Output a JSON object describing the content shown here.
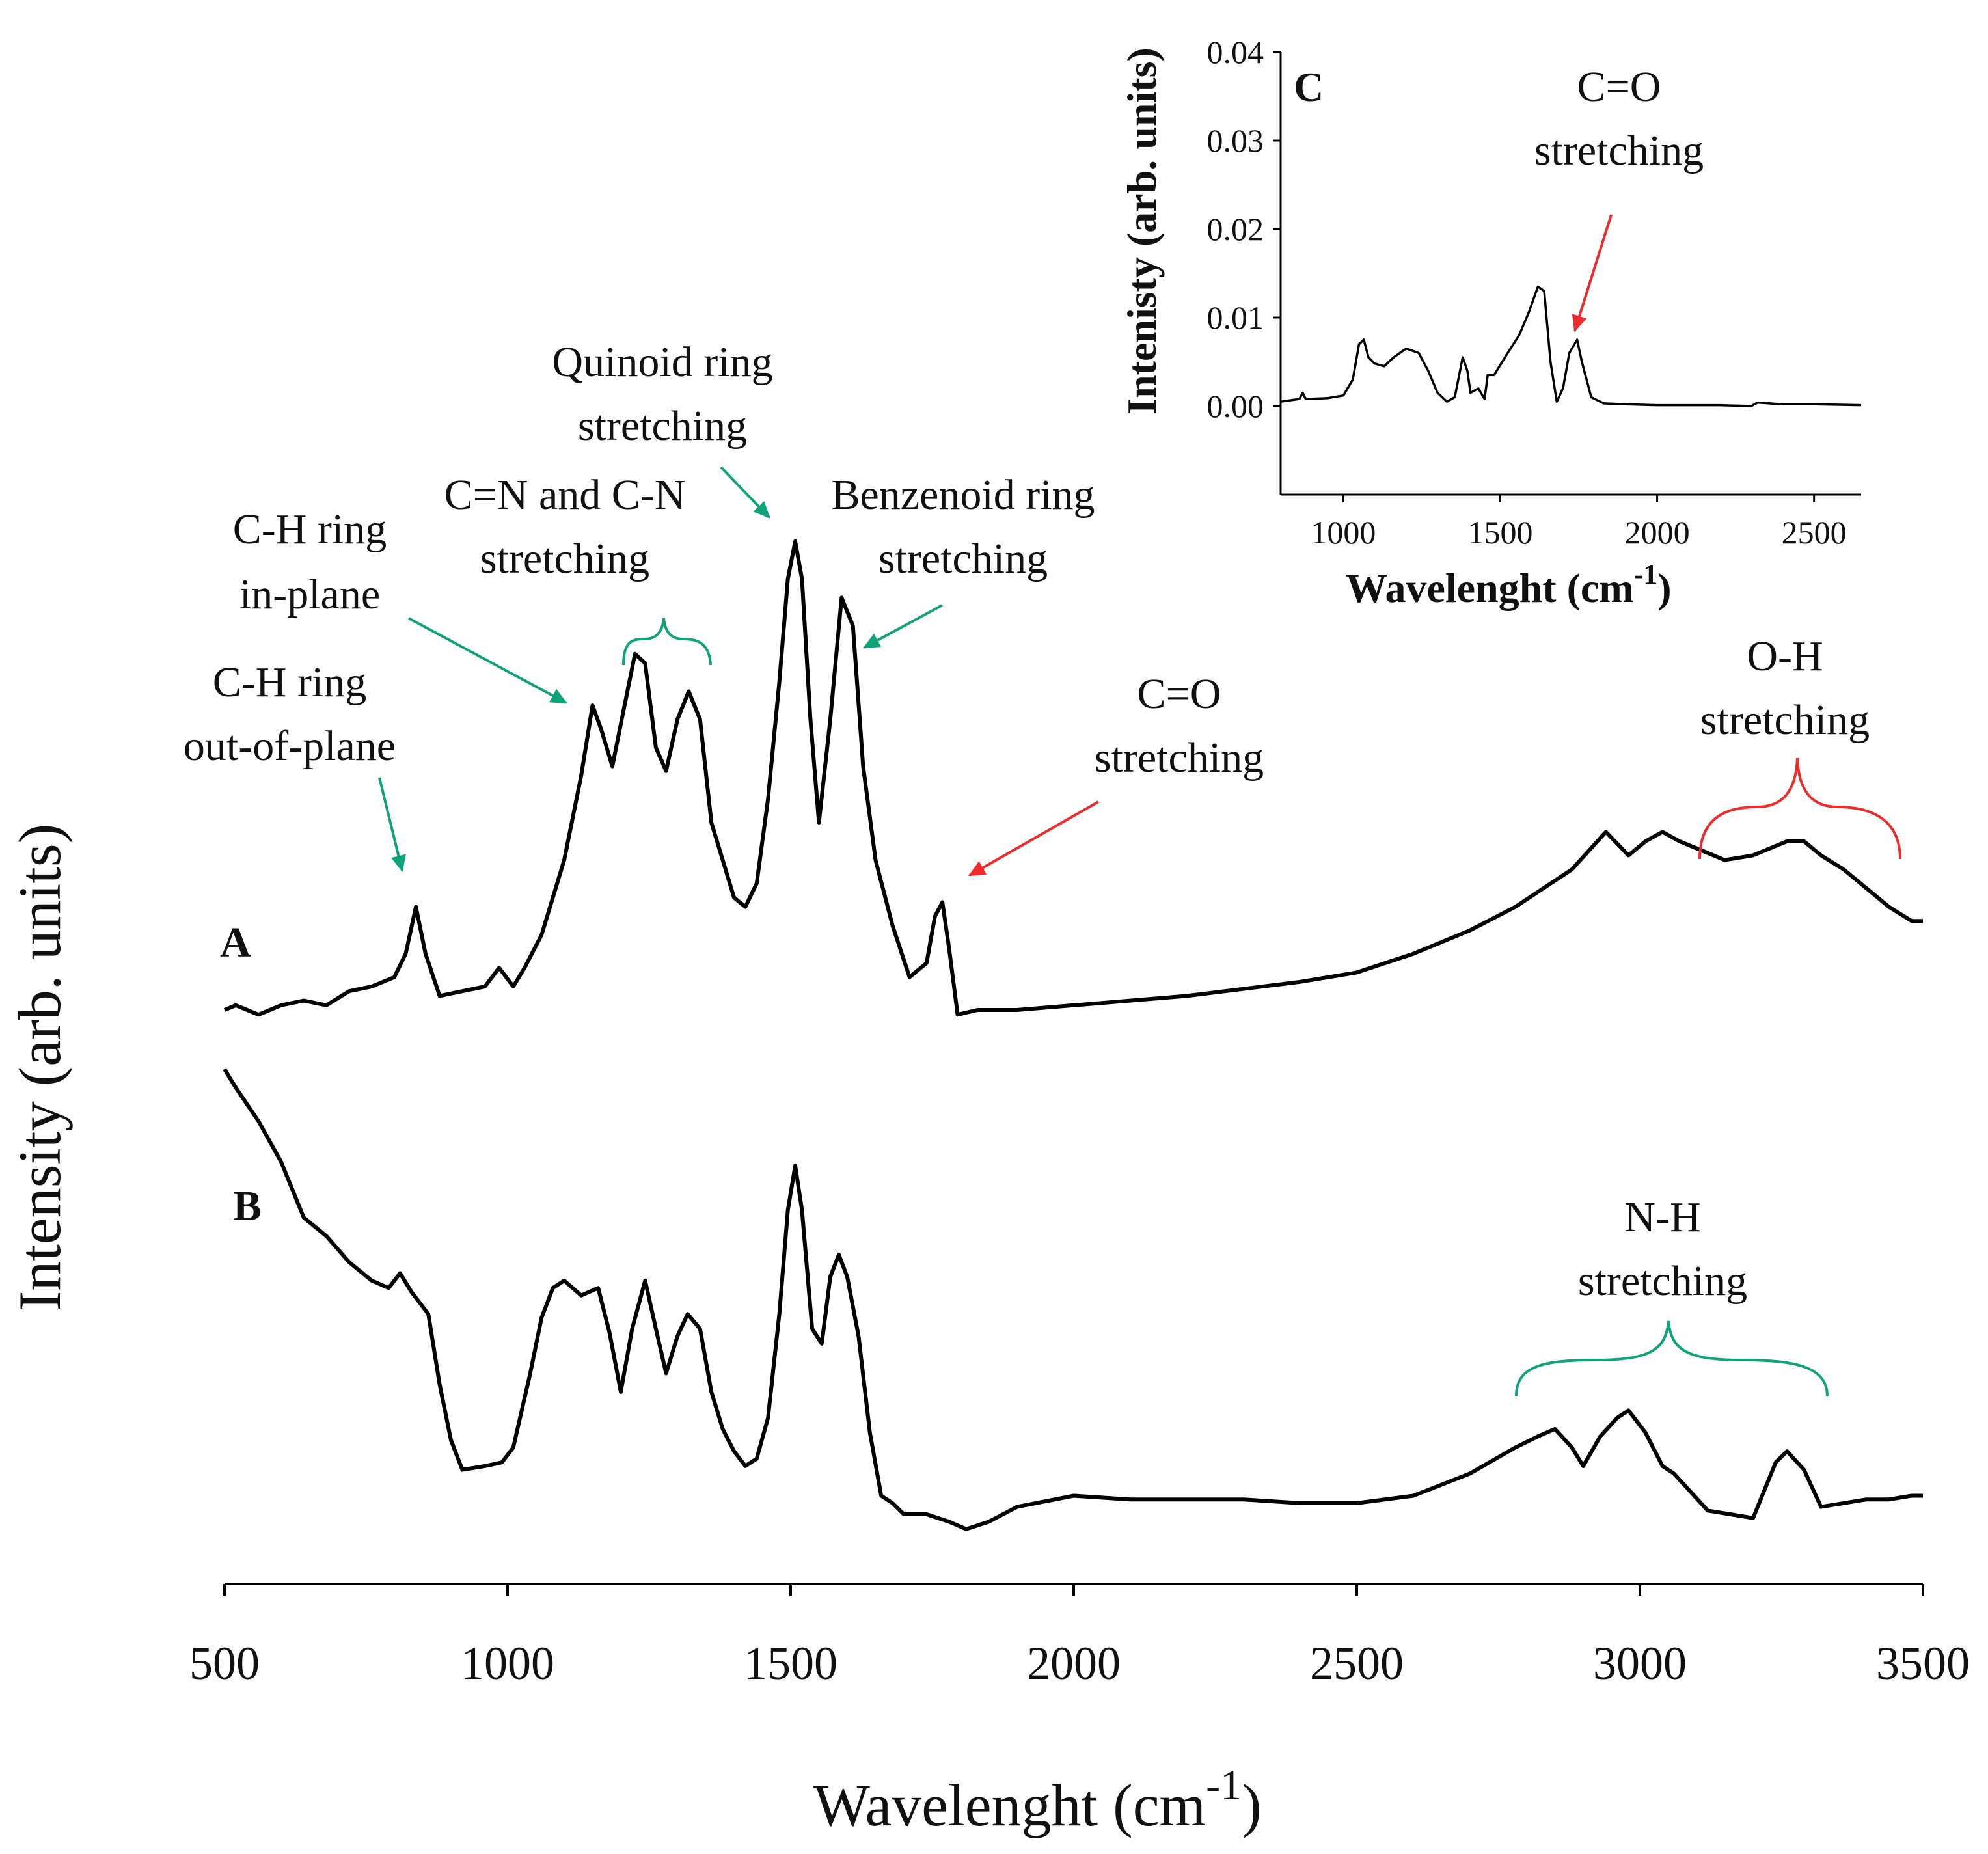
{
  "colors": {
    "green": "#0fa37a",
    "red": "#ee2a2a",
    "line": "#000000"
  },
  "annotations": {
    "ch_out_1": "C-H ring",
    "ch_out_2": "out-of-plane",
    "ch_in_1": "C-H ring",
    "ch_in_2": "in-plane",
    "cn_1": "C=N and C-N",
    "cn_2": "stretching",
    "quin_1": "Quinoid  ring",
    "quin_2": "stretching",
    "benz_1": "Benzenoid  ring",
    "benz_2": "stretching",
    "co_1": "C=O",
    "co_2": "stretching",
    "oh_1": "O-H",
    "oh_2": "stretching",
    "nh_1": "N-H",
    "nh_2": "stretching"
  },
  "inset_annotations": {
    "co_1": "C=O",
    "co_2": "stretching"
  },
  "chart_data": [
    {
      "type": "line",
      "title": "",
      "xlabel": "Wavelenght (cm",
      "xlabel_sup": "-1",
      "xlabel_close": ")",
      "ylabel": "Intensity (arb. units)",
      "xlim": [
        500,
        3500
      ],
      "xticks": [
        500,
        1000,
        1500,
        2000,
        2500,
        3000,
        3500
      ],
      "yticks": false,
      "series": [
        {
          "name": "A",
          "x": [
            500,
            520,
            560,
            600,
            640,
            680,
            720,
            760,
            800,
            820,
            838,
            855,
            880,
            920,
            960,
            985,
            1010,
            1030,
            1060,
            1100,
            1130,
            1150,
            1165,
            1185,
            1205,
            1225,
            1243,
            1262,
            1280,
            1300,
            1320,
            1340,
            1360,
            1380,
            1400,
            1420,
            1440,
            1460,
            1480,
            1495,
            1508,
            1520,
            1535,
            1550,
            1570,
            1590,
            1610,
            1628,
            1650,
            1680,
            1710,
            1740,
            1755,
            1768,
            1780,
            1795,
            1830,
            1900,
            2000,
            2200,
            2400,
            2500,
            2600,
            2700,
            2780,
            2880,
            2940,
            2980,
            3010,
            3040,
            3070,
            3110,
            3150,
            3200,
            3240,
            3260,
            3290,
            3320,
            3360,
            3400,
            3440,
            3480,
            3500
          ],
          "values": [
            0.0,
            0.01,
            -0.01,
            0.01,
            0.02,
            0.01,
            0.04,
            0.05,
            0.07,
            0.12,
            0.22,
            0.12,
            0.03,
            0.04,
            0.05,
            0.09,
            0.05,
            0.09,
            0.16,
            0.32,
            0.5,
            0.65,
            0.6,
            0.52,
            0.64,
            0.76,
            0.74,
            0.56,
            0.51,
            0.62,
            0.68,
            0.62,
            0.4,
            0.32,
            0.24,
            0.22,
            0.27,
            0.45,
            0.7,
            0.92,
            1.0,
            0.92,
            0.62,
            0.4,
            0.62,
            0.88,
            0.82,
            0.52,
            0.32,
            0.18,
            0.07,
            0.1,
            0.2,
            0.23,
            0.13,
            -0.01,
            0.0,
            0.0,
            0.01,
            0.03,
            0.06,
            0.08,
            0.12,
            0.17,
            0.22,
            0.3,
            0.38,
            0.33,
            0.36,
            0.38,
            0.36,
            0.34,
            0.32,
            0.33,
            0.35,
            0.36,
            0.36,
            0.33,
            0.3,
            0.26,
            0.22,
            0.19,
            0.19
          ]
        },
        {
          "name": "B",
          "x": [
            500,
            520,
            560,
            600,
            640,
            680,
            720,
            760,
            790,
            810,
            830,
            860,
            880,
            900,
            920,
            960,
            990,
            1010,
            1040,
            1060,
            1080,
            1100,
            1130,
            1160,
            1180,
            1200,
            1220,
            1243,
            1262,
            1280,
            1300,
            1318,
            1340,
            1360,
            1380,
            1400,
            1420,
            1440,
            1460,
            1480,
            1495,
            1508,
            1520,
            1538,
            1555,
            1570,
            1585,
            1600,
            1620,
            1640,
            1660,
            1680,
            1700,
            1740,
            1780,
            1810,
            1850,
            1900,
            2000,
            2100,
            2200,
            2300,
            2400,
            2500,
            2600,
            2700,
            2780,
            2820,
            2850,
            2880,
            2900,
            2930,
            2960,
            2980,
            3010,
            3040,
            3060,
            3090,
            3120,
            3160,
            3200,
            3240,
            3260,
            3290,
            3320,
            3360,
            3400,
            3440,
            3480,
            3500
          ],
          "values": [
            1.1,
            1.05,
            0.96,
            0.85,
            0.7,
            0.65,
            0.58,
            0.53,
            0.51,
            0.55,
            0.5,
            0.44,
            0.25,
            0.1,
            0.02,
            0.03,
            0.04,
            0.08,
            0.28,
            0.43,
            0.51,
            0.53,
            0.49,
            0.51,
            0.39,
            0.23,
            0.4,
            0.53,
            0.4,
            0.28,
            0.38,
            0.44,
            0.4,
            0.23,
            0.13,
            0.07,
            0.03,
            0.05,
            0.16,
            0.44,
            0.72,
            0.84,
            0.72,
            0.4,
            0.36,
            0.54,
            0.6,
            0.54,
            0.38,
            0.12,
            -0.05,
            -0.07,
            -0.1,
            -0.1,
            -0.12,
            -0.14,
            -0.12,
            -0.08,
            -0.05,
            -0.06,
            -0.06,
            -0.06,
            -0.07,
            -0.07,
            -0.05,
            0.01,
            0.08,
            0.11,
            0.13,
            0.08,
            0.03,
            0.11,
            0.16,
            0.18,
            0.12,
            0.03,
            0.01,
            -0.04,
            -0.09,
            -0.1,
            -0.11,
            0.04,
            0.07,
            0.02,
            -0.08,
            -0.07,
            -0.06,
            -0.06,
            -0.05,
            -0.05
          ]
        }
      ],
      "series_labels": {
        "A": "A",
        "B": "B"
      }
    },
    {
      "type": "line",
      "title": "C",
      "xlabel": "Wavelenght (cm",
      "xlabel_sup": "-1",
      "xlabel_close": ")",
      "ylabel": "Intenisty (arb. units)",
      "xlim": [
        800,
        2650
      ],
      "ylim": [
        -0.01,
        0.04
      ],
      "xticks": [
        1000,
        1500,
        2000,
        2500
      ],
      "yticks": [
        0.0,
        0.01,
        0.02,
        0.03,
        0.04
      ],
      "ytick_labels": [
        "0.00",
        "0.01",
        "0.02",
        "0.03",
        "0.04"
      ],
      "series": [
        {
          "name": "C",
          "x": [
            800,
            860,
            870,
            880,
            950,
            1000,
            1030,
            1050,
            1065,
            1080,
            1100,
            1130,
            1160,
            1200,
            1240,
            1270,
            1300,
            1330,
            1355,
            1380,
            1395,
            1405,
            1430,
            1450,
            1460,
            1480,
            1520,
            1560,
            1590,
            1620,
            1640,
            1660,
            1680,
            1700,
            1720,
            1745,
            1760,
            1790,
            1830,
            1900,
            2000,
            2200,
            2300,
            2320,
            2400,
            2500,
            2650
          ],
          "values": [
            0.0005,
            0.0008,
            0.0015,
            0.0008,
            0.0009,
            0.0012,
            0.003,
            0.007,
            0.0075,
            0.0055,
            0.0048,
            0.0045,
            0.0055,
            0.0065,
            0.006,
            0.004,
            0.0015,
            0.0005,
            0.001,
            0.0055,
            0.004,
            0.0015,
            0.002,
            0.0008,
            0.0035,
            0.0035,
            0.0058,
            0.008,
            0.0105,
            0.0135,
            0.013,
            0.005,
            0.0005,
            0.002,
            0.006,
            0.0075,
            0.005,
            0.001,
            0.0003,
            0.0002,
            0.0001,
            0.0001,
            0.0,
            0.0004,
            0.0002,
            0.0002,
            0.0001
          ]
        }
      ]
    }
  ]
}
